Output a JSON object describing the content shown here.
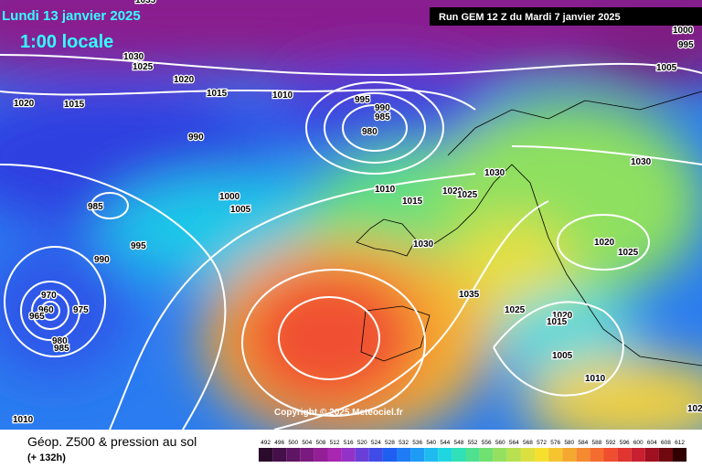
{
  "header": {
    "date": "Lundi 13 janvier 2025",
    "time": "1:00 locale",
    "run": "Run GEM 12 Z du Mardi 7 janvier 2025"
  },
  "copyright": "Copyright © 2025 Meteociel.fr",
  "footer": {
    "title": "Géop. Z500 & pression au sol",
    "lead": "(+ 132h)"
  },
  "scale": {
    "values": [
      492,
      496,
      500,
      504,
      508,
      512,
      516,
      520,
      524,
      528,
      532,
      536,
      540,
      544,
      548,
      552,
      556,
      560,
      564,
      568,
      572,
      576,
      580,
      584,
      588,
      592,
      596,
      600,
      604,
      608,
      612
    ],
    "colors": [
      "#2b0b2b",
      "#45104a",
      "#5e1563",
      "#7a1a7e",
      "#931f96",
      "#a826b0",
      "#9432c8",
      "#6a3fd8",
      "#3f4ce8",
      "#1f5ff0",
      "#1f7cf5",
      "#1f9bf5",
      "#1fbbf0",
      "#1fd6e0",
      "#2fe0b8",
      "#4fe090",
      "#70e070",
      "#95e060",
      "#b8e050",
      "#dbe040",
      "#f5e030",
      "#f5c530",
      "#f5a830",
      "#f58a30",
      "#f56c30",
      "#f04e30",
      "#e03530",
      "#c82030",
      "#a01020",
      "#700810",
      "#300000"
    ]
  },
  "isobar_labels": [
    1035,
    1030,
    1025,
    1020,
    1015,
    1010,
    1020,
    1015,
    990,
    995,
    990,
    985,
    980,
    985,
    1000,
    1005,
    995,
    990,
    970,
    960,
    965,
    975,
    980,
    985,
    1010,
    1015,
    1020,
    1025,
    1030,
    1030,
    1035,
    1025,
    1020,
    1015,
    1005,
    1010,
    1030,
    1020,
    1025,
    1000,
    995,
    1005,
    1010,
    102
  ]
}
